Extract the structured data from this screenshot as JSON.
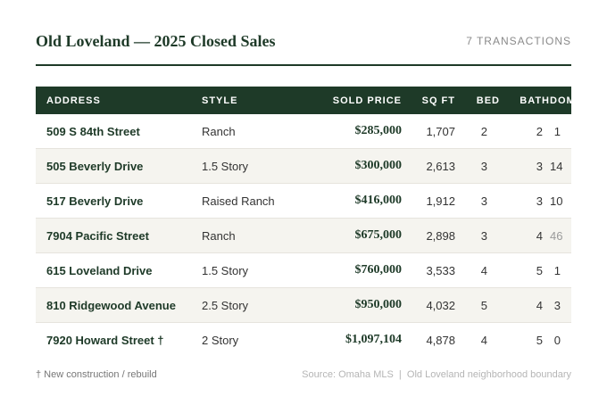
{
  "header": {
    "title": "Old Loveland — 2025 Closed Sales",
    "count": "7 TRANSACTIONS"
  },
  "table": {
    "columns": [
      "ADDRESS",
      "STYLE",
      "SOLD PRICE",
      "SQ FT",
      "BED",
      "BATH",
      "DOM"
    ],
    "rows": [
      {
        "address": "509 S 84th Street",
        "style": "Ranch",
        "price": "$285,000",
        "sqft": "1,707",
        "bed": "2",
        "bath": "2",
        "dom": "1"
      },
      {
        "address": "505 Beverly Drive",
        "style": "1.5 Story",
        "price": "$300,000",
        "sqft": "2,613",
        "bed": "3",
        "bath": "3",
        "dom": "14"
      },
      {
        "address": "517 Beverly Drive",
        "style": "Raised Ranch",
        "price": "$416,000",
        "sqft": "1,912",
        "bed": "3",
        "bath": "3",
        "dom": "10"
      },
      {
        "address": "7904 Pacific Street",
        "style": "Ranch",
        "price": "$675,000",
        "sqft": "2,898",
        "bed": "3",
        "bath": "4",
        "dom": "46"
      },
      {
        "address": "615 Loveland Drive",
        "style": "1.5 Story",
        "price": "$760,000",
        "sqft": "3,533",
        "bed": "4",
        "bath": "5",
        "dom": "1"
      },
      {
        "address": "810 Ridgewood Avenue",
        "style": "2.5 Story",
        "price": "$950,000",
        "sqft": "4,032",
        "bed": "5",
        "bath": "4",
        "dom": "3"
      },
      {
        "address": "7920 Howard Street †",
        "style": "2 Story",
        "price": "$1,097,104",
        "sqft": "4,878",
        "bed": "4",
        "bath": "5",
        "dom": "0"
      }
    ]
  },
  "footer": {
    "note": "† New construction / rebuild",
    "source": "Source: Omaha MLS  |  Old Loveland neighborhood boundary"
  },
  "colors": {
    "header_bg": "#1e3a28",
    "row_alt": "#f5f4ef",
    "muted_dom": "#9a9a9a"
  }
}
